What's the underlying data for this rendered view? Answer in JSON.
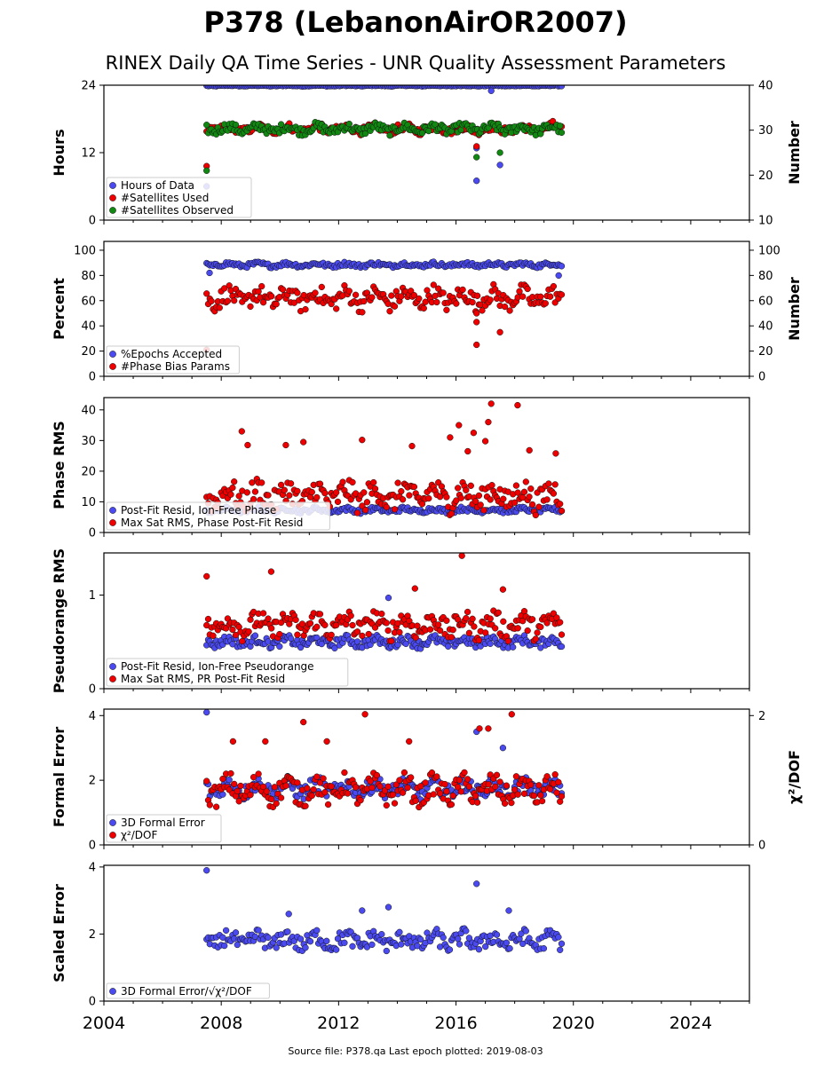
{
  "title": "P378 (LebanonAirOR2007)",
  "subtitle": "RINEX Daily QA Time Series - UNR Quality Assessment Parameters",
  "footer": "Source file: P378.qa Last epoch plotted: 2019-08-03",
  "x_axis": {
    "min": 2004,
    "max": 2026,
    "ticks": [
      "2004",
      "2008",
      "2012",
      "2016",
      "2020",
      "2024"
    ]
  },
  "colors": {
    "blue": "#4a4af0",
    "red": "#ee0000",
    "green": "#118811",
    "edge": "#111111"
  },
  "chart_data": [
    {
      "type": "scatter",
      "ylabel": "Hours",
      "ylabel_right": "Number",
      "ylim": [
        0,
        24
      ],
      "yticks": [
        "0",
        "12",
        "24"
      ],
      "ylim_right": [
        10,
        40
      ],
      "yticks_right": [
        "10",
        "20",
        "30",
        "40"
      ],
      "legend": [
        "Hours of Data",
        "#Satellites Used",
        "#Satellites Observed"
      ],
      "series": [
        {
          "name": "Hours of Data",
          "color": "blue",
          "axis": "left",
          "x_start": 2007.5,
          "x_end": 2019.6,
          "base": 23.9,
          "spread": 0.1,
          "outliers": [
            [
              2007.5,
              6.0
            ],
            [
              2016.7,
              7.0
            ],
            [
              2017.5,
              9.8
            ],
            [
              2017.2,
              23.0
            ],
            [
              2016.7,
              12.8
            ]
          ]
        },
        {
          "name": "#Satellites Used",
          "color": "red",
          "axis": "right",
          "x_start": 2007.5,
          "x_end": 2019.6,
          "base": 30.3,
          "spread": 1.1,
          "outliers": [
            [
              2007.5,
              22.0
            ],
            [
              2016.7,
              26.4
            ],
            [
              2019.3,
              32.0
            ]
          ]
        },
        {
          "name": "#Satellites Observed",
          "color": "green",
          "axis": "right",
          "x_start": 2007.5,
          "x_end": 2019.6,
          "base": 30.3,
          "spread": 1.2,
          "outliers": [
            [
              2007.5,
              21.0
            ],
            [
              2016.7,
              24.0
            ],
            [
              2017.5,
              25.0
            ]
          ]
        }
      ]
    },
    {
      "type": "scatter",
      "ylabel": "Percent",
      "ylabel_right": "Number",
      "ylim": [
        0,
        107
      ],
      "yticks": [
        "0",
        "20",
        "40",
        "60",
        "80",
        "100"
      ],
      "ylim_right": [
        0,
        107
      ],
      "yticks_right": [
        "0",
        "20",
        "40",
        "60",
        "80",
        "100"
      ],
      "legend": [
        "%Epochs Accepted",
        "#Phase Bias Params"
      ],
      "series": [
        {
          "name": "%Epochs Accepted",
          "color": "blue",
          "axis": "left",
          "x_start": 2007.5,
          "x_end": 2019.6,
          "base": 88.5,
          "spread": 2.0,
          "outliers": [
            [
              2007.6,
              82.0
            ],
            [
              2019.5,
              80.0
            ]
          ]
        },
        {
          "name": "#Phase Bias Params",
          "color": "red",
          "axis": "right",
          "x_start": 2007.5,
          "x_end": 2019.6,
          "base": 62.0,
          "spread": 9.0,
          "outliers": [
            [
              2007.5,
              21.0
            ],
            [
              2016.7,
              25.0
            ],
            [
              2016.7,
              43.0
            ],
            [
              2016.7,
              50.0
            ],
            [
              2017.5,
              35.0
            ]
          ]
        }
      ]
    },
    {
      "type": "scatter",
      "ylabel": "Phase RMS",
      "ylim": [
        0,
        44
      ],
      "yticks": [
        "0",
        "10",
        "20",
        "30",
        "40"
      ],
      "legend": [
        "Post-Fit Resid, Ion-Free Phase",
        "Max Sat RMS, Phase Post-Fit Resid"
      ],
      "series": [
        {
          "name": "Post-Fit Resid, Ion-Free Phase",
          "color": "blue",
          "axis": "left",
          "x_start": 2007.5,
          "x_end": 2019.6,
          "base": 7.3,
          "spread": 0.9,
          "outliers": []
        },
        {
          "name": "Max Sat RMS, Phase Post-Fit Resid",
          "color": "red",
          "axis": "left",
          "x_start": 2007.5,
          "x_end": 2019.6,
          "base": 12.0,
          "spread": 5.0,
          "outliers": [
            [
              2008.7,
              33.0
            ],
            [
              2008.9,
              28.5
            ],
            [
              2010.2,
              28.5
            ],
            [
              2010.8,
              29.5
            ],
            [
              2012.8,
              30.2
            ],
            [
              2014.5,
              28.2
            ],
            [
              2015.8,
              31.0
            ],
            [
              2016.1,
              35.0
            ],
            [
              2016.6,
              32.5
            ],
            [
              2017.1,
              36.0
            ],
            [
              2017.2,
              42.0
            ],
            [
              2018.1,
              41.5
            ],
            [
              2018.5,
              26.8
            ],
            [
              2019.4,
              25.8
            ],
            [
              2016.4,
              26.5
            ],
            [
              2017.0,
              29.8
            ]
          ]
        }
      ]
    },
    {
      "type": "scatter",
      "ylabel": "Pseudorange RMS",
      "ylim": [
        0,
        1.45
      ],
      "yticks": [
        "0",
        "1"
      ],
      "legend": [
        "Post-Fit Resid, Ion-Free Pseudorange",
        "Max Sat RMS, PR Post-Fit Resid"
      ],
      "series": [
        {
          "name": "Post-Fit Resid, Ion-Free Pseudorange",
          "color": "blue",
          "axis": "left",
          "x_start": 2007.5,
          "x_end": 2019.6,
          "base": 0.5,
          "spread": 0.06,
          "outliers": [
            [
              2013.7,
              0.97
            ]
          ]
        },
        {
          "name": "Max Sat RMS, PR Post-Fit Resid",
          "color": "red",
          "axis": "left",
          "x_start": 2007.5,
          "x_end": 2019.6,
          "base": 0.68,
          "spread": 0.14,
          "outliers": [
            [
              2007.5,
              1.2
            ],
            [
              2009.7,
              1.25
            ],
            [
              2016.2,
              1.42
            ],
            [
              2014.6,
              1.07
            ],
            [
              2017.6,
              1.06
            ]
          ]
        }
      ]
    },
    {
      "type": "scatter",
      "ylabel": "Formal Error",
      "ylabel_right": "χ²/DOF",
      "ylim": [
        0,
        4.2
      ],
      "yticks": [
        "0",
        "2",
        "4"
      ],
      "ylim_right": [
        0,
        2.1
      ],
      "yticks_right": [
        "0",
        "2"
      ],
      "legend": [
        "3D Formal Error",
        "χ²/DOF"
      ],
      "series": [
        {
          "name": "3D Formal Error",
          "color": "blue",
          "axis": "left",
          "x_start": 2007.5,
          "x_end": 2019.6,
          "base": 1.75,
          "spread": 0.3,
          "outliers": [
            [
              2007.5,
              4.1
            ],
            [
              2016.7,
              3.5
            ],
            [
              2017.6,
              3.0
            ]
          ]
        },
        {
          "name": "χ²/DOF",
          "color": "red",
          "axis": "right",
          "x_start": 2007.5,
          "x_end": 2019.6,
          "base": 0.85,
          "spread": 0.22,
          "outliers": [
            [
              2010.8,
              1.9
            ],
            [
              2012.9,
              2.02
            ],
            [
              2016.8,
              1.8
            ],
            [
              2017.1,
              1.8
            ],
            [
              2017.9,
              2.02
            ],
            [
              2008.4,
              1.6
            ],
            [
              2009.5,
              1.6
            ],
            [
              2011.6,
              1.6
            ],
            [
              2014.4,
              1.6
            ]
          ]
        }
      ]
    },
    {
      "type": "scatter",
      "ylabel": "Scaled Error",
      "ylim": [
        0,
        4.05
      ],
      "yticks": [
        "0",
        "2",
        "4"
      ],
      "legend": [
        "3D Formal Error/√χ²/DOF"
      ],
      "series": [
        {
          "name": "3D Formal Error/√χ²/DOF",
          "color": "blue",
          "axis": "left",
          "x_start": 2007.5,
          "x_end": 2019.6,
          "base": 1.8,
          "spread": 0.3,
          "outliers": [
            [
              2007.5,
              3.9
            ],
            [
              2016.7,
              3.5
            ],
            [
              2013.7,
              2.8
            ],
            [
              2017.8,
              2.7
            ],
            [
              2010.3,
              2.6
            ],
            [
              2012.8,
              2.7
            ]
          ]
        }
      ]
    }
  ]
}
